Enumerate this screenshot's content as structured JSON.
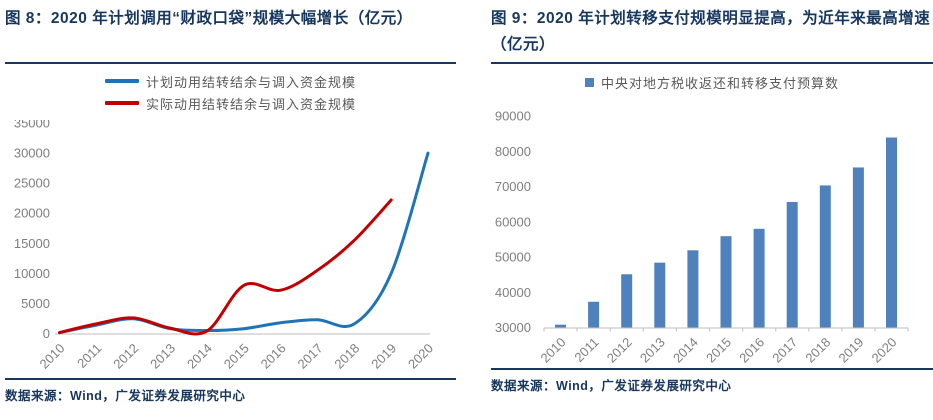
{
  "panels": [
    {
      "title": "图 8：2020 年计划调用“财政口袋”规模大幅增长（亿元）",
      "source": "数据来源：Wind，广发证券发展研究中心"
    },
    {
      "title": "图 9：2020 年计划转移支付规模明显提高，为近年来最高增速（亿元）",
      "source": "数据来源：Wind，广发证券发展研究中心"
    }
  ],
  "colors": {
    "title_navy": "#17375E",
    "axis_label_gray": "#7F7F7F",
    "axis_line_gray": "#C9C9C9",
    "legend_text_gray": "#595959",
    "line_blue": "#1F74B5",
    "line_red": "#C00000",
    "bar_blue": "#4F81BD"
  },
  "chart_data": [
    {
      "type": "line",
      "title": "图 8：2020 年计划调用“财政口袋”规模大幅增长（亿元）",
      "categories": [
        "2010",
        "2011",
        "2012",
        "2013",
        "2014",
        "2015",
        "2016",
        "2017",
        "2018",
        "2019",
        "2020"
      ],
      "series": [
        {
          "name": "计划动用结转结余与调入资金规模",
          "color": "#1F74B5",
          "values": [
            150,
            1400,
            2450,
            800,
            500,
            800,
            1800,
            2300,
            1600,
            10000,
            30000
          ]
        },
        {
          "name": "实际动用结转结余与调入资金规模",
          "color": "#C00000",
          "values": [
            150,
            1600,
            2600,
            900,
            400,
            8000,
            7200,
            10500,
            15500,
            22200
          ]
        }
      ],
      "ylabel": "",
      "ylim": [
        0,
        35000
      ],
      "ytick_step": 5000,
      "smooth": true,
      "grid": false,
      "legend_position": "top"
    },
    {
      "type": "bar",
      "title": "图 9：2020 年计划转移支付规模明显提高，为近年来最高增速（亿元）",
      "categories": [
        "2010",
        "2011",
        "2012",
        "2013",
        "2014",
        "2015",
        "2016",
        "2017",
        "2018",
        "2019",
        "2020"
      ],
      "series": [
        {
          "name": "中央对地方税收返还和转移支付预算数",
          "color": "#4F81BD",
          "values": [
            30800,
            37300,
            45100,
            48400,
            51900,
            55900,
            58000,
            65600,
            70300,
            75400,
            83900
          ]
        }
      ],
      "ylabel": "",
      "ylim": [
        30000,
        90000
      ],
      "ytick_step": 10000,
      "smooth": false,
      "grid": false,
      "legend_position": "top"
    }
  ]
}
